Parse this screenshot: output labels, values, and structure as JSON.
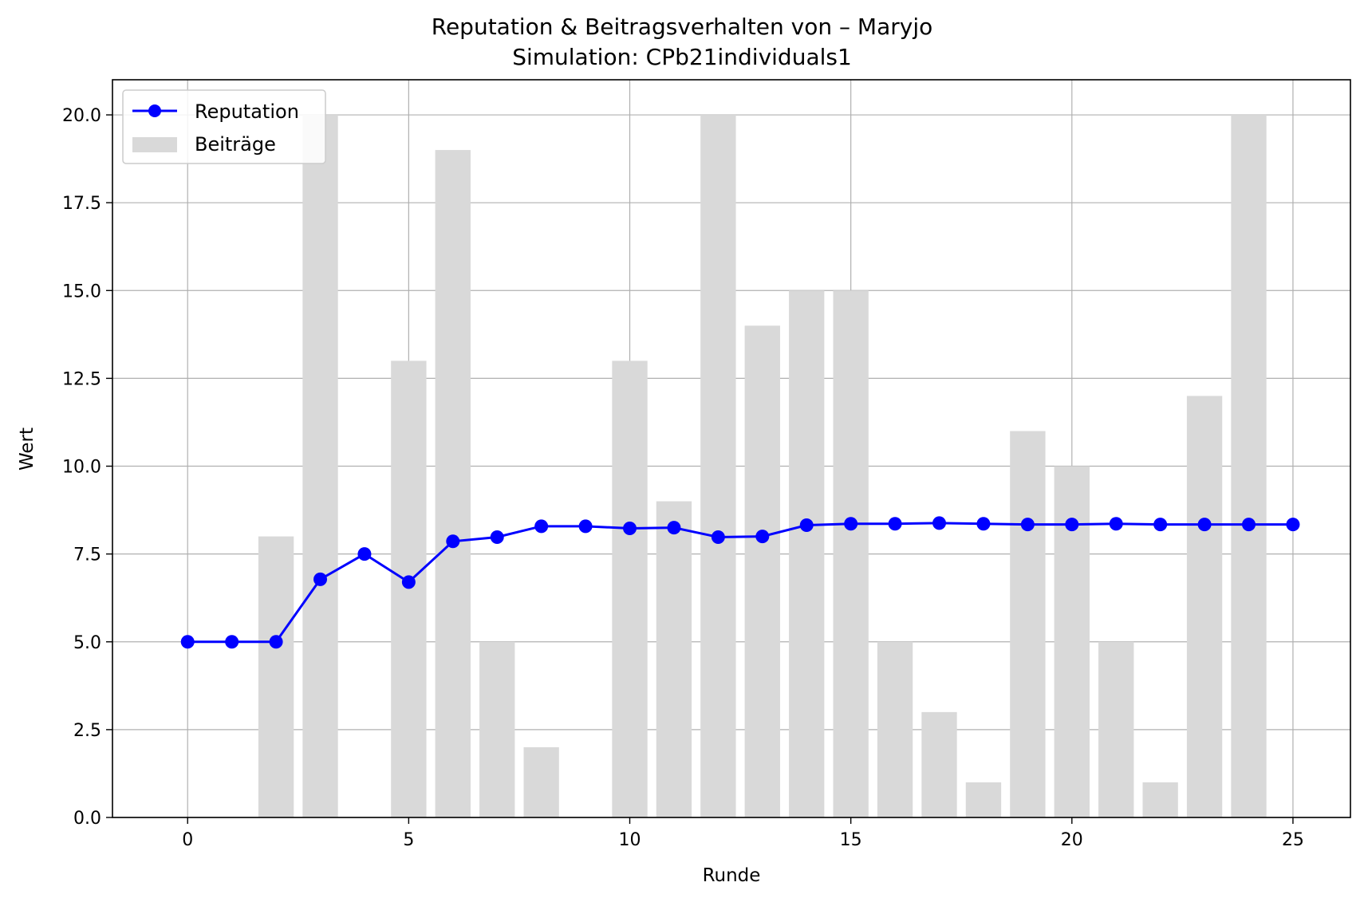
{
  "chart_data": {
    "type": "bar+line",
    "title": "Reputation & Beitragsverhalten von – Maryjo",
    "subtitle": "Simulation: CPb21individuals1",
    "xlabel": "Runde",
    "ylabel": "Wert",
    "xlim": [
      -1.7,
      26.3
    ],
    "ylim": [
      0,
      21
    ],
    "xticks": [
      0,
      5,
      10,
      15,
      20,
      25
    ],
    "yticks": [
      0.0,
      2.5,
      5.0,
      7.5,
      10.0,
      12.5,
      15.0,
      17.5,
      20.0
    ],
    "ytick_labels": [
      "0.0",
      "2.5",
      "5.0",
      "7.5",
      "10.0",
      "12.5",
      "15.0",
      "17.5",
      "20.0"
    ],
    "grid": true,
    "legend_position": "top-left",
    "x": [
      0,
      1,
      2,
      3,
      4,
      5,
      6,
      7,
      8,
      9,
      10,
      11,
      12,
      13,
      14,
      15,
      16,
      17,
      18,
      19,
      20,
      21,
      22,
      23,
      24,
      25
    ],
    "series": [
      {
        "name": "Reputation",
        "kind": "line",
        "color": "#0000ff",
        "values": [
          5.0,
          5.0,
          5.0,
          6.78,
          7.5,
          6.7,
          7.86,
          7.98,
          8.29,
          8.29,
          8.23,
          8.25,
          7.98,
          8.0,
          8.32,
          8.36,
          8.36,
          8.38,
          8.36,
          8.34,
          8.34,
          8.36,
          8.34,
          8.34,
          8.34,
          8.34
        ]
      },
      {
        "name": "Beiträge",
        "kind": "bar",
        "color": "#d9d9d9",
        "values": [
          0,
          0,
          8,
          20,
          0,
          13,
          19,
          5,
          2,
          0,
          13,
          9,
          20,
          14,
          15,
          15,
          5,
          3,
          1,
          11,
          10,
          5,
          1,
          12,
          20,
          0
        ]
      }
    ]
  }
}
